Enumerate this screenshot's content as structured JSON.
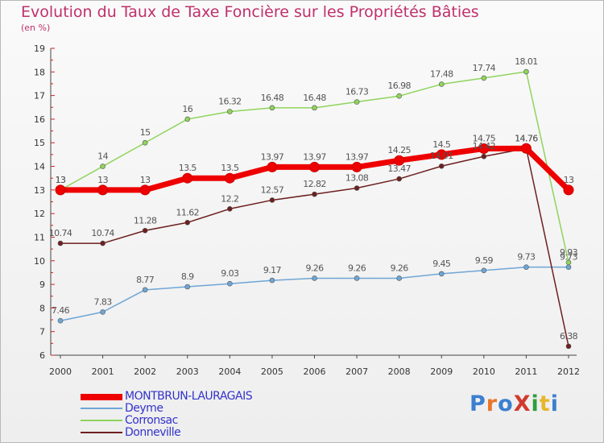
{
  "header": {
    "title": "Evolution du Taux de Taxe Foncière sur les Propriétés Bâties",
    "subtitle": "(en %)"
  },
  "logo": {
    "text": "ProXiti",
    "colors": [
      "#3b7fd0",
      "#e8762c",
      "#3b7fd0",
      "#d23a2e",
      "#2e9e3e",
      "#e8b62c",
      "#3b7fd0"
    ]
  },
  "chart_data": {
    "type": "line",
    "categories": [
      "2000",
      "2001",
      "2002",
      "2003",
      "2004",
      "2005",
      "2006",
      "2007",
      "2008",
      "2009",
      "2010",
      "2011",
      "2012"
    ],
    "ylim": [
      6,
      19
    ],
    "yticks": [
      6,
      7,
      8,
      9,
      10,
      11,
      12,
      13,
      14,
      15,
      16,
      17,
      18,
      19
    ],
    "grid": false,
    "legend_position": "bottom-left",
    "series": [
      {
        "name": "MONTBRUN-LAURAGAIS",
        "color": "#ee0000",
        "values": [
          13,
          13,
          13,
          13.5,
          13.5,
          13.97,
          13.97,
          13.97,
          14.25,
          14.5,
          14.75,
          14.76,
          13
        ],
        "labels": [
          "13",
          "13",
          "13",
          "13.5",
          "13.5",
          "13.97",
          "13.97",
          "13.97",
          "14.25",
          "14.5",
          "14.75",
          "14.76",
          "13"
        ]
      },
      {
        "name": "Deyme",
        "color": "#6ea6d6",
        "values": [
          7.46,
          7.83,
          8.77,
          8.9,
          9.03,
          9.17,
          9.26,
          9.26,
          9.26,
          9.45,
          9.59,
          9.73,
          9.73
        ],
        "labels": [
          "7.46",
          "7.83",
          "8.77",
          "8.9",
          "9.03",
          "9.17",
          "9.26",
          "9.26",
          "9.26",
          "9.45",
          "9.59",
          "9.73",
          "9.73"
        ]
      },
      {
        "name": "Corronsac",
        "color": "#8fd45c",
        "values": [
          13,
          14,
          15,
          16,
          16.32,
          16.48,
          16.48,
          16.73,
          16.98,
          17.48,
          17.74,
          18.01,
          9.93
        ],
        "labels": [
          "13",
          "14",
          "15",
          "16",
          "16.32",
          "16.48",
          "16.48",
          "16.73",
          "16.98",
          "17.48",
          "17.74",
          "18.01",
          "9.93"
        ]
      },
      {
        "name": "Donneville",
        "color": "#6e1f1f",
        "values": [
          10.74,
          10.74,
          11.28,
          11.62,
          12.2,
          12.57,
          12.82,
          13.08,
          13.47,
          14.01,
          14.42,
          14.76,
          6.38
        ],
        "labels": [
          "10.74",
          "10.74",
          "11.28",
          "11.62",
          "12.2",
          "12.57",
          "12.82",
          "13.08",
          "13.47",
          "14.01",
          "14.42",
          "14.76",
          "6.38"
        ]
      }
    ]
  }
}
